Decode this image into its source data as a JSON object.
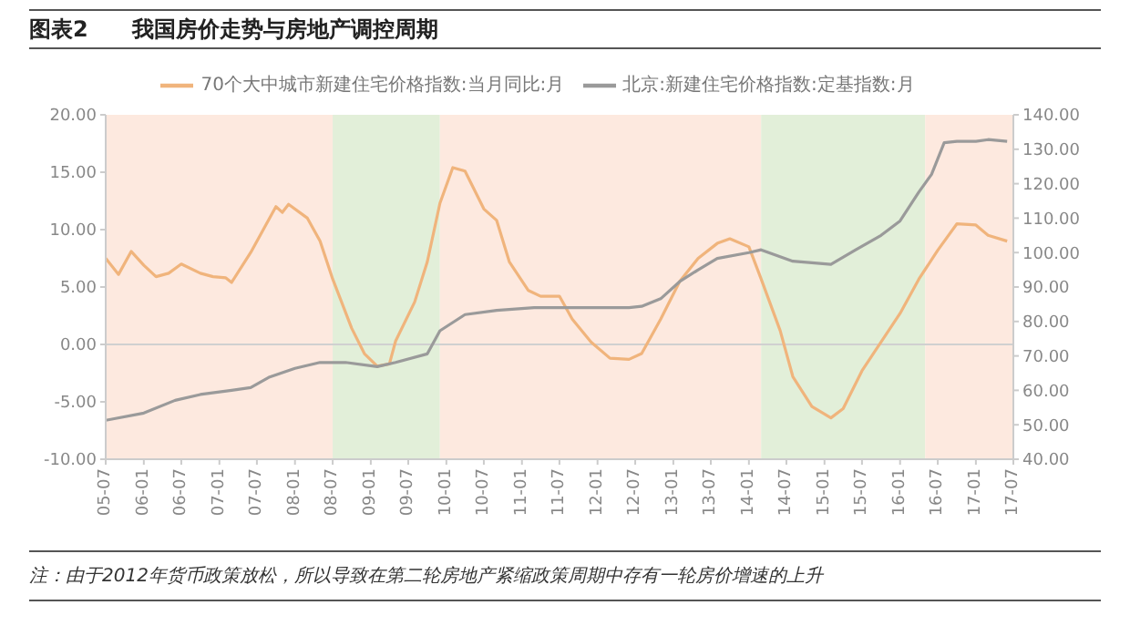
{
  "chart_data": {
    "type": "line",
    "title": "图表2　　我国房价走势与房地产调控周期",
    "annotations": [
      "注：由于2012年货币政策放松，所以导致在第二轮房地产紧缩政策周期中存有一轮房价增速的上升"
    ],
    "series": [
      {
        "name": "70个大中城市新建住宅价格指数:当月同比:月",
        "color": "#f0b47c",
        "x": [
          "2005-07",
          "2005-09",
          "2005-11",
          "2006-01",
          "2006-03",
          "2006-05",
          "2006-07",
          "2006-10",
          "2006-12",
          "2007-02",
          "2007-03",
          "2007-06",
          "2007-10",
          "2007-11",
          "2007-12",
          "2008-03",
          "2008-05",
          "2008-07",
          "2008-10",
          "2008-12",
          "2009-02",
          "2009-04",
          "2009-05",
          "2009-08",
          "2009-10",
          "2009-12",
          "2010-02",
          "2010-04",
          "2010-07",
          "2010-09",
          "2010-11",
          "2011-02",
          "2011-04",
          "2011-07",
          "2011-09",
          "2011-12",
          "2012-03",
          "2012-06",
          "2012-08",
          "2012-11",
          "2013-02",
          "2013-05",
          "2013-08",
          "2013-10",
          "2014-01",
          "2014-03",
          "2014-06",
          "2014-08",
          "2014-11",
          "2015-02",
          "2015-04",
          "2015-07",
          "2015-10",
          "2016-01",
          "2016-04",
          "2016-07",
          "2016-10",
          "2017-01",
          "2017-03",
          "2017-06"
        ],
        "values": [
          7.5,
          6.1,
          8.1,
          6.9,
          5.9,
          6.2,
          7.0,
          6.2,
          5.9,
          5.8,
          5.4,
          8.0,
          12.0,
          11.5,
          12.2,
          11.0,
          9.0,
          5.7,
          1.4,
          -0.8,
          -1.9,
          -1.7,
          0.3,
          3.7,
          7.2,
          12.3,
          15.4,
          15.1,
          11.8,
          10.8,
          7.2,
          4.7,
          4.2,
          4.2,
          2.2,
          0.2,
          -1.2,
          -1.3,
          -0.8,
          2.2,
          5.5,
          7.5,
          8.8,
          9.2,
          8.5,
          5.7,
          1.2,
          -2.8,
          -5.4,
          -6.4,
          -5.6,
          -2.3,
          0.2,
          2.7,
          5.7,
          8.2,
          10.5,
          10.4,
          9.5,
          9.0
        ]
      },
      {
        "name": "北京:新建住宅价格指数:定基指数:月",
        "color": "#9a9a9a",
        "axis": "y2",
        "x": [
          "2005-07",
          "2006-01",
          "2006-06",
          "2006-10",
          "2007-03",
          "2007-06",
          "2007-09",
          "2008-01",
          "2008-05",
          "2008-09",
          "2009-02",
          "2009-05",
          "2009-10",
          "2009-12",
          "2010-04",
          "2010-09",
          "2011-03",
          "2012-06",
          "2012-08",
          "2012-11",
          "2013-02",
          "2013-05",
          "2013-08",
          "2014-01",
          "2014-03",
          "2014-08",
          "2015-02",
          "2015-06",
          "2015-10",
          "2016-01",
          "2016-04",
          "2016-06",
          "2016-08",
          "2016-10",
          "2017-01",
          "2017-03",
          "2017-06"
        ],
        "values": [
          51.3,
          53.4,
          57.1,
          58.8,
          60.0,
          60.8,
          63.9,
          66.4,
          68.1,
          68.1,
          66.9,
          68.1,
          70.6,
          77.3,
          82.0,
          83.2,
          84.0,
          84.0,
          84.4,
          86.6,
          91.6,
          95.0,
          98.3,
          100.0,
          100.8,
          97.5,
          96.6,
          100.8,
          105.0,
          109.2,
          117.6,
          122.7,
          131.9,
          132.3,
          132.3,
          132.8,
          132.3
        ]
      }
    ],
    "xlim": [
      "2005-07",
      "2017-07"
    ],
    "xticks": [
      {
        "value": "2005-07",
        "label": "05-07"
      },
      {
        "value": "2006-01",
        "label": "06-01"
      },
      {
        "value": "2006-07",
        "label": "06-07"
      },
      {
        "value": "2007-01",
        "label": "07-01"
      },
      {
        "value": "2007-07",
        "label": "07-07"
      },
      {
        "value": "2008-01",
        "label": "08-01"
      },
      {
        "value": "2008-07",
        "label": "08-07"
      },
      {
        "value": "2009-01",
        "label": "09-01"
      },
      {
        "value": "2009-07",
        "label": "09-07"
      },
      {
        "value": "2010-01",
        "label": "10-01"
      },
      {
        "value": "2010-07",
        "label": "10-07"
      },
      {
        "value": "2011-01",
        "label": "11-01"
      },
      {
        "value": "2011-07",
        "label": "11-07"
      },
      {
        "value": "2012-01",
        "label": "12-01"
      },
      {
        "value": "2012-07",
        "label": "12-07"
      },
      {
        "value": "2013-01",
        "label": "13-01"
      },
      {
        "value": "2013-07",
        "label": "13-07"
      },
      {
        "value": "2014-01",
        "label": "14-01"
      },
      {
        "value": "2014-07",
        "label": "14-07"
      },
      {
        "value": "2015-01",
        "label": "15-01"
      },
      {
        "value": "2015-07",
        "label": "15-07"
      },
      {
        "value": "2016-01",
        "label": "16-01"
      },
      {
        "value": "2016-07",
        "label": "16-07"
      },
      {
        "value": "2017-01",
        "label": "17-01"
      },
      {
        "value": "2017-07",
        "label": "17-07"
      }
    ],
    "ylim": [
      -10,
      20
    ],
    "yticks": [
      {
        "value": -10,
        "label": "-10.00"
      },
      {
        "value": -5,
        "label": "-5.00"
      },
      {
        "value": 0,
        "label": "0.00"
      },
      {
        "value": 5,
        "label": "5.00"
      },
      {
        "value": 10,
        "label": "10.00"
      },
      {
        "value": 15,
        "label": "15.00"
      },
      {
        "value": 20,
        "label": "20.00"
      }
    ],
    "y2lim": [
      40,
      140
    ],
    "y2ticks": [
      {
        "value": 40,
        "label": "40.00"
      },
      {
        "value": 50,
        "label": "50.00"
      },
      {
        "value": 60,
        "label": "60.00"
      },
      {
        "value": 70,
        "label": "70.00"
      },
      {
        "value": 80,
        "label": "80.00"
      },
      {
        "value": 90,
        "label": "90.00"
      },
      {
        "value": 100,
        "label": "100.00"
      },
      {
        "value": 110,
        "label": "110.00"
      },
      {
        "value": 120,
        "label": "120.00"
      },
      {
        "value": 130,
        "label": "130.00"
      },
      {
        "value": 140,
        "label": "140.00"
      }
    ],
    "bands": [
      {
        "axis": "x",
        "from": "2005-07",
        "to": "2008-07",
        "color": "#fde9df"
      },
      {
        "axis": "x",
        "from": "2008-07",
        "to": "2009-12",
        "color": "#e2efd9"
      },
      {
        "axis": "x",
        "from": "2009-12",
        "to": "2014-03",
        "color": "#fde9df"
      },
      {
        "axis": "x",
        "from": "2014-03",
        "to": "2016-05",
        "color": "#e2efd9"
      },
      {
        "axis": "x",
        "from": "2016-05",
        "to": "2017-07",
        "color": "#fde9df"
      }
    ],
    "ref_lines": [
      {
        "axis": "y",
        "value": 0,
        "color": "#d0d0d0"
      }
    ],
    "legend": "top",
    "marker": "none",
    "line_style": "solid"
  }
}
